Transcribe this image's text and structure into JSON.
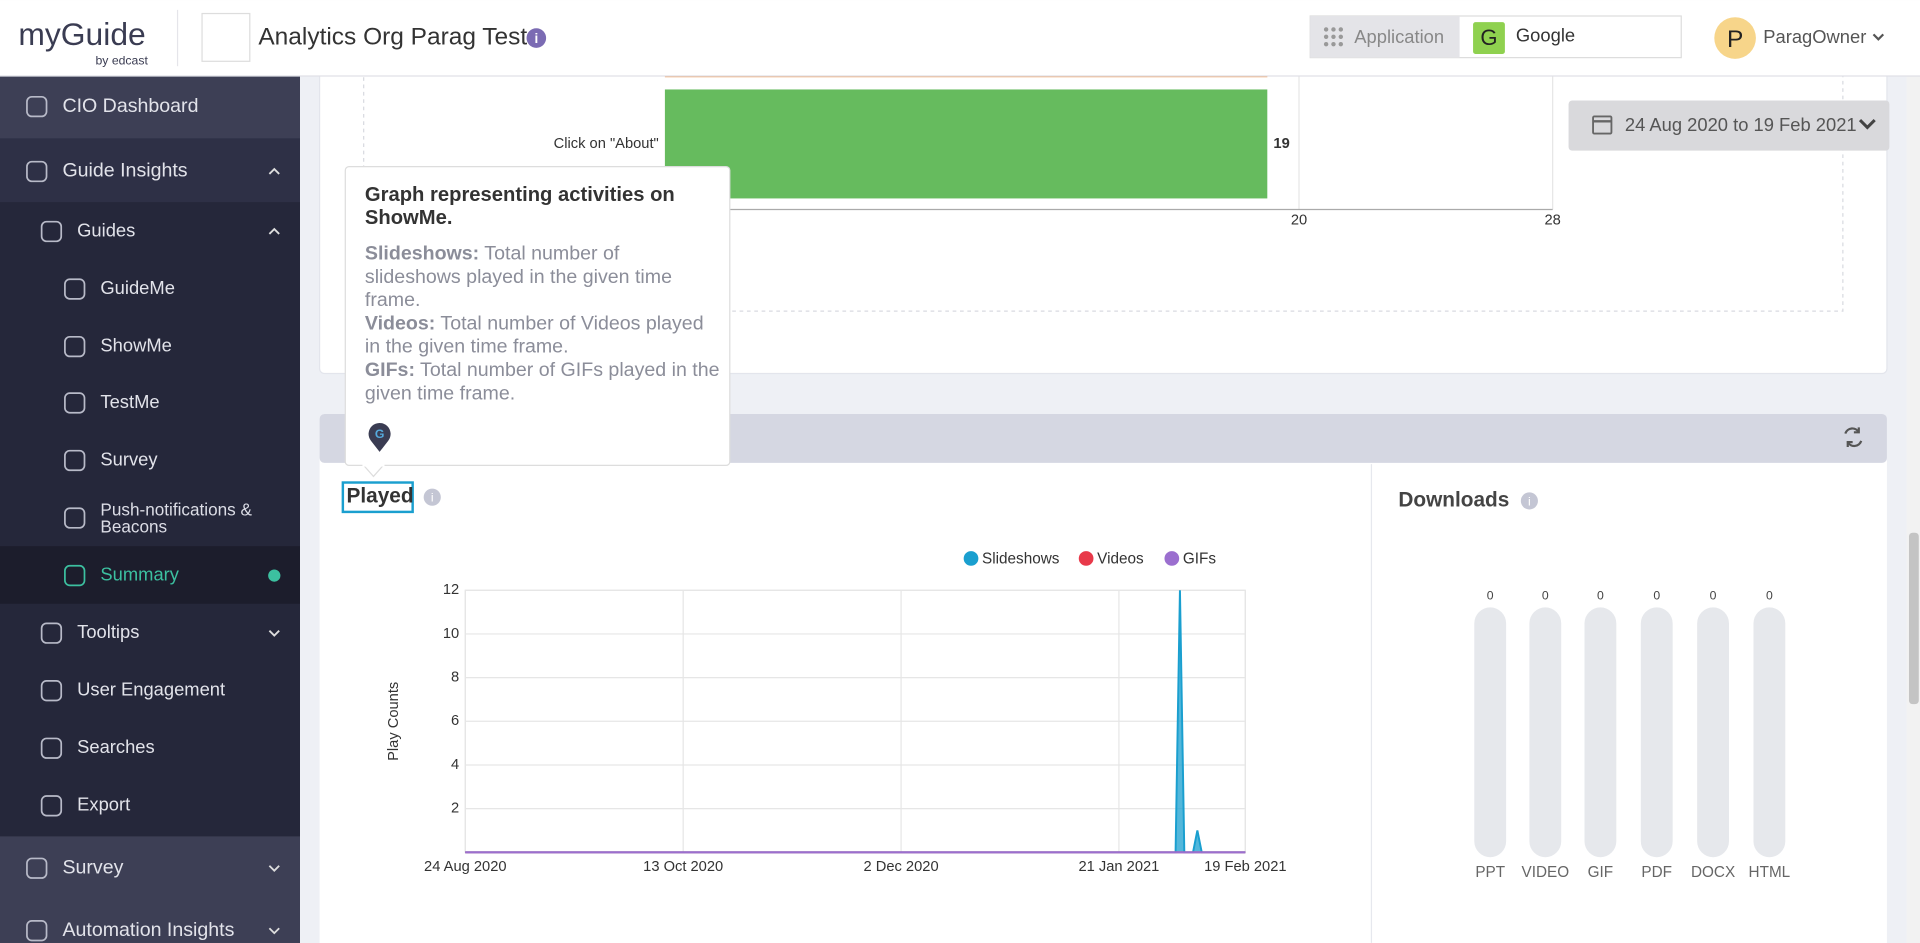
{
  "header": {
    "logo": "myGuide",
    "logo_sub": "by edcast",
    "org_title": "Analytics Org Parag Test",
    "app_label": "Application",
    "app_initial": "G",
    "app_name": "Google",
    "user_initial": "P",
    "user_name": "ParagOwner"
  },
  "sidebar": {
    "items": [
      "CIO Dashboard",
      "Guide Insights",
      "Guides",
      "GuideMe",
      "ShowMe",
      "TestMe",
      "Survey",
      "Push-notifications & Beacons",
      "Summary",
      "Tooltips",
      "User Engagement",
      "Searches",
      "Export",
      "Survey",
      "Automation Insights"
    ]
  },
  "date_range": "24 Aug 2020 to 19 Feb 2021",
  "tooltip": {
    "title": "Graph representing activities on ShowMe.",
    "items": [
      {
        "term": "Slideshows:",
        "text": "Total number of slideshows played in the given time frame."
      },
      {
        "term": "Videos:",
        "text": "Total number of Videos played in the given time frame."
      },
      {
        "term": "GIFs:",
        "text": "Total number of GIFs played in the given time frame."
      }
    ]
  },
  "chart_data": [
    {
      "type": "hbar",
      "categories": [
        "Click on \"About\""
      ],
      "values": [
        19
      ],
      "color": "#66bb5e",
      "xlim": [
        0,
        28
      ],
      "xticks": [
        20,
        28
      ],
      "grid": true
    },
    {
      "type": "line",
      "title": "Played",
      "y_label": "Play Counts",
      "x": [
        "2020-08-24",
        "2021-02-03",
        "2021-02-04",
        "2021-02-05",
        "2021-02-07",
        "2021-02-08",
        "2021-02-09",
        "2021-02-19"
      ],
      "series": [
        {
          "name": "Slideshows",
          "color": "#1a9fcf",
          "values": [
            0,
            0,
            12,
            0,
            0,
            1,
            0,
            0
          ]
        },
        {
          "name": "Videos",
          "color": "#e8394a",
          "values": [
            0,
            0,
            0,
            0,
            0,
            0,
            0,
            0
          ]
        },
        {
          "name": "GIFs",
          "color": "#9b6fcf",
          "values": [
            0,
            0,
            0,
            0,
            0,
            0,
            0,
            0
          ]
        }
      ],
      "xlim": [
        "2020-08-24",
        "2021-02-19"
      ],
      "xticks": [
        {
          "value": "2020-08-24",
          "label": "24 Aug 2020"
        },
        {
          "value": "2020-10-13",
          "label": "13 Oct 2020"
        },
        {
          "value": "2020-12-02",
          "label": "2 Dec 2020"
        },
        {
          "value": "2021-01-21",
          "label": "21 Jan 2021"
        },
        {
          "value": "2021-02-19",
          "label": "19 Feb 2021"
        }
      ],
      "ylim": [
        0,
        12
      ],
      "yticks": [
        2,
        4,
        6,
        8,
        10,
        12
      ],
      "grid": true
    },
    {
      "type": "bar",
      "title": "Downloads",
      "categories": [
        "PPT",
        "VIDEO",
        "GIF",
        "PDF",
        "DOCX",
        "HTML"
      ],
      "values": [
        0,
        0,
        0,
        0,
        0,
        0
      ],
      "color": "#1a9fcf"
    }
  ]
}
